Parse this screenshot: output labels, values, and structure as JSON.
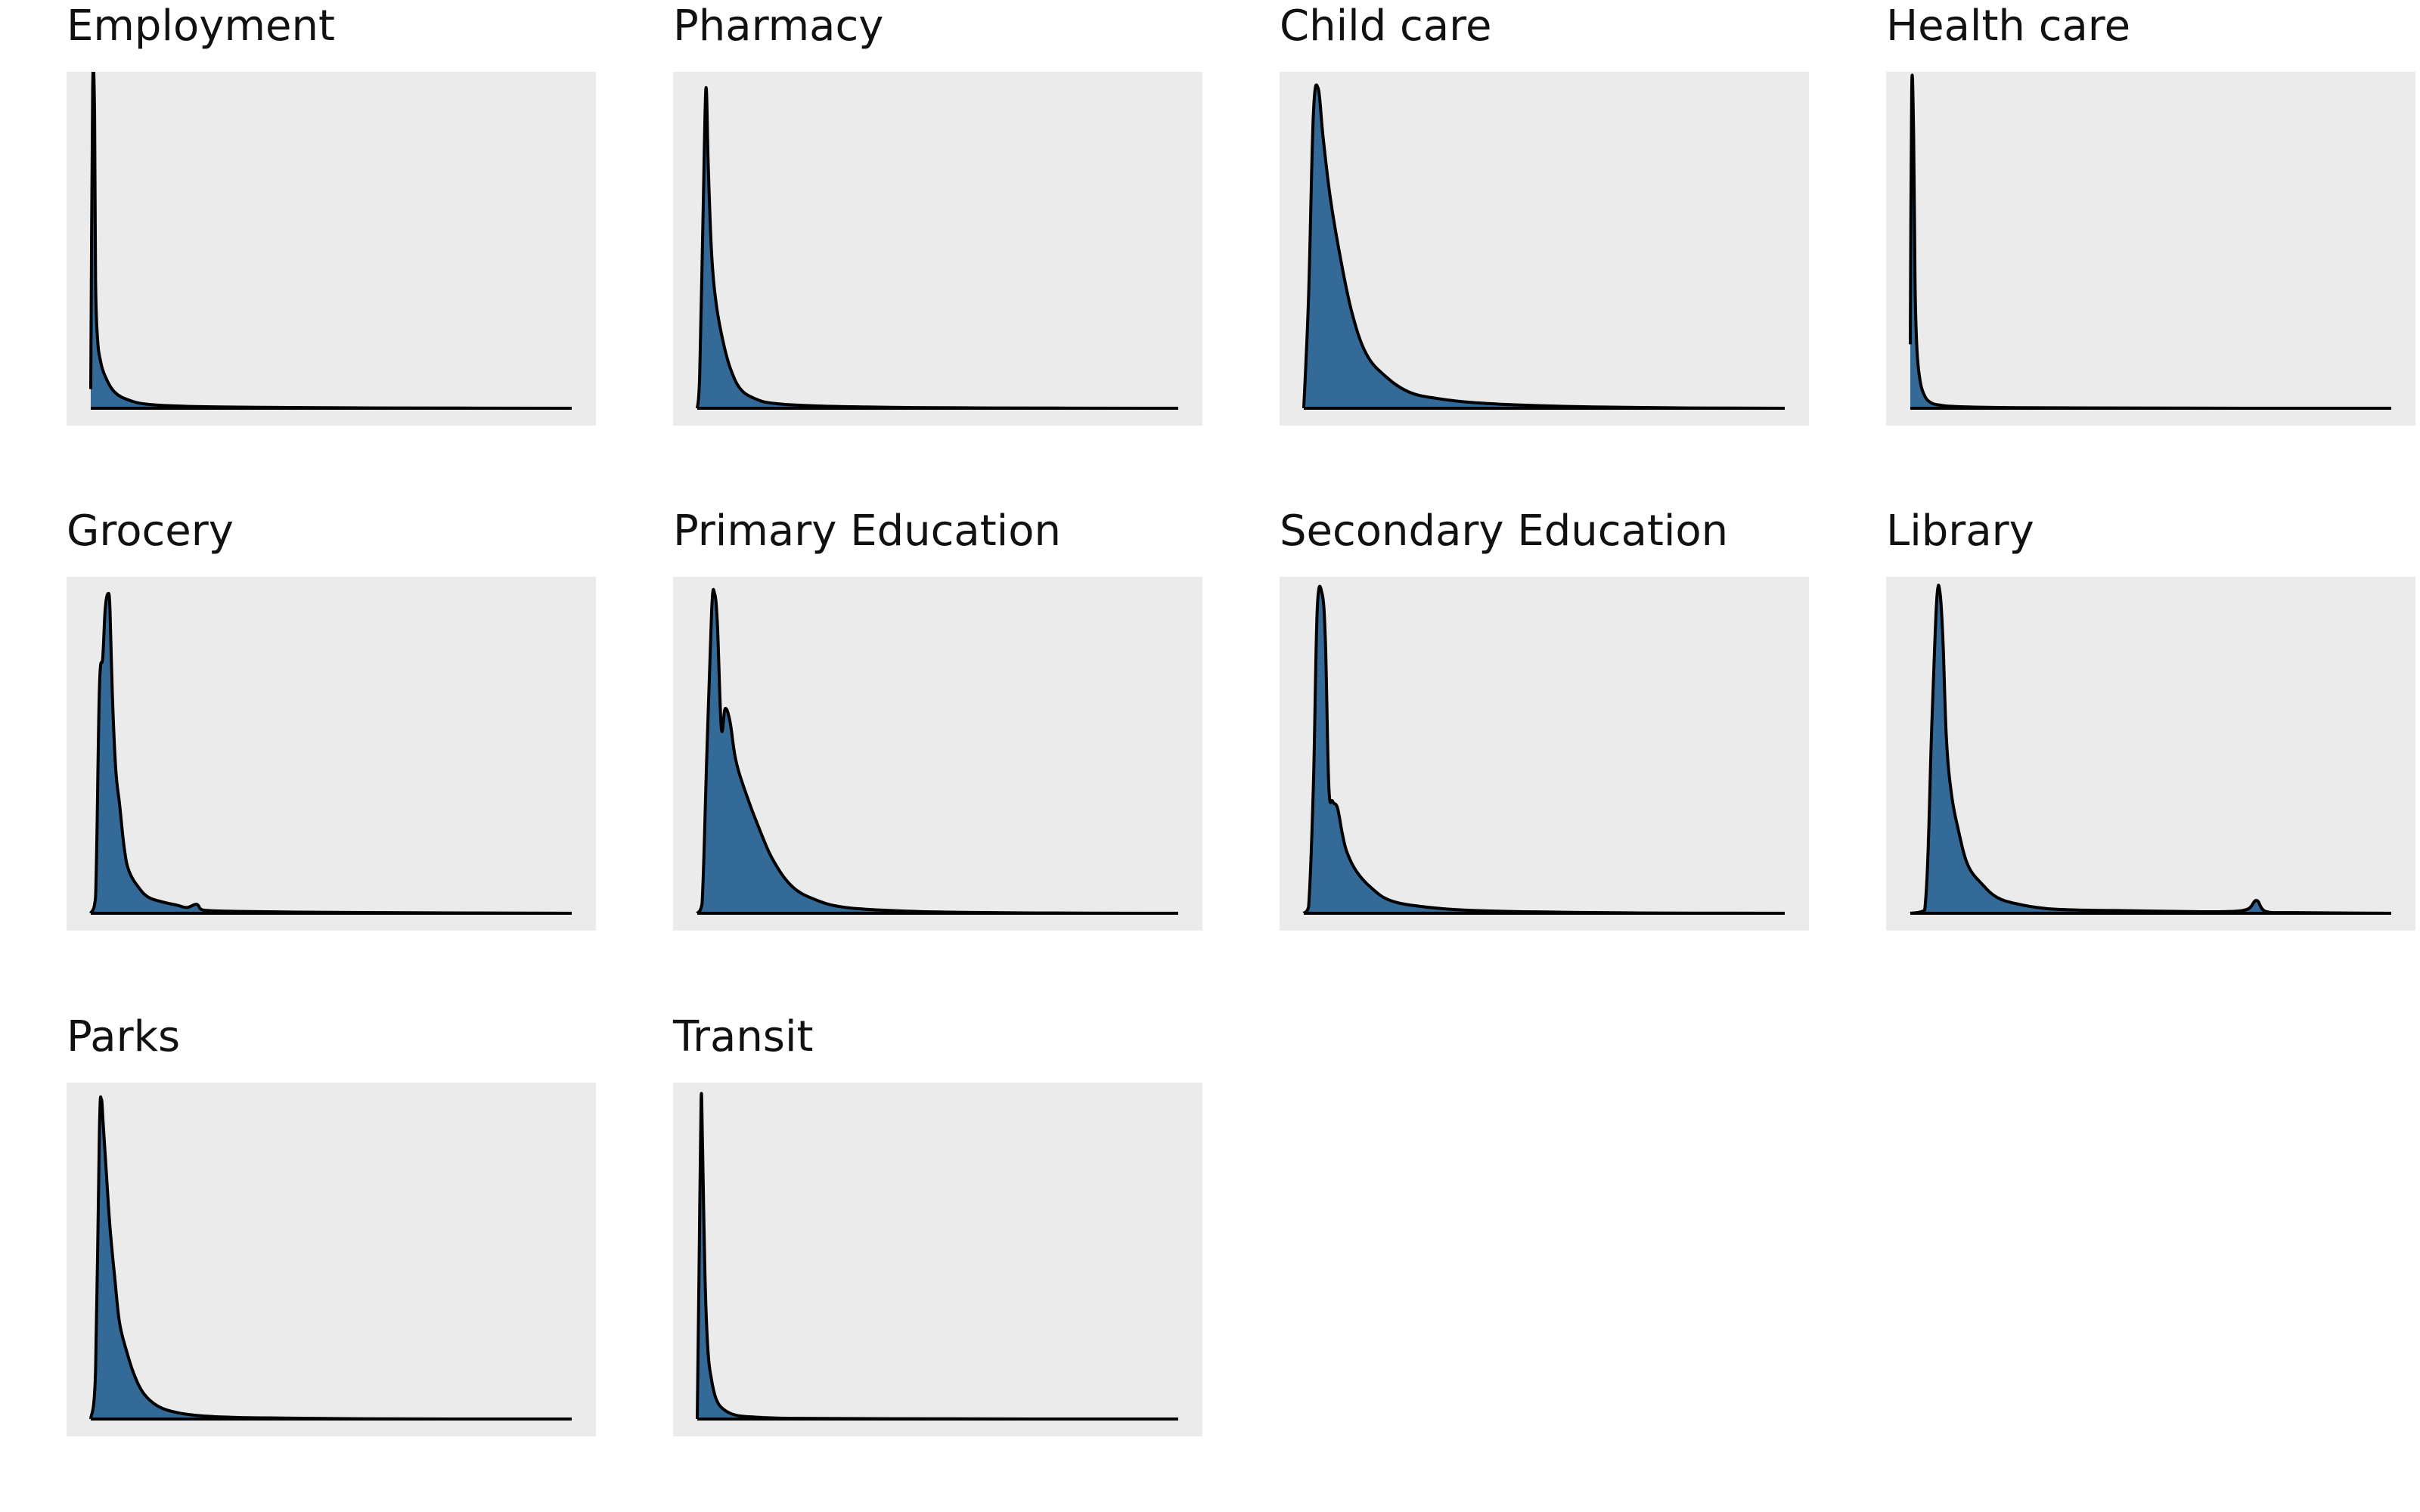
{
  "colors": {
    "panel_background": "#ebebeb",
    "fill": "#336a98",
    "line": "#000000"
  },
  "chart_data": [
    {
      "type": "area",
      "title": "Employment",
      "xlim": [
        0,
        1
      ],
      "grid": false,
      "series": [
        {
          "x": [
            0,
            0.004,
            0.008,
            0.01,
            0.014,
            0.02,
            0.03,
            0.05,
            0.08,
            0.12,
            0.2,
            0.35,
            0.6,
            1.0
          ],
          "y": [
            0.06,
            1.0,
            0.92,
            0.4,
            0.22,
            0.15,
            0.1,
            0.05,
            0.025,
            0.012,
            0.006,
            0.003,
            0.001,
            0.0
          ]
        }
      ]
    },
    {
      "type": "area",
      "title": "Pharmacy",
      "xlim": [
        0,
        1
      ],
      "grid": false,
      "series": [
        {
          "x": [
            0,
            0.005,
            0.012,
            0.018,
            0.023,
            0.03,
            0.04,
            0.055,
            0.07,
            0.09,
            0.12,
            0.16,
            0.25,
            0.4,
            0.6,
            1.0
          ],
          "y": [
            0.0,
            0.1,
            0.6,
            1.0,
            0.75,
            0.48,
            0.32,
            0.2,
            0.12,
            0.06,
            0.03,
            0.015,
            0.007,
            0.003,
            0.001,
            0.0
          ]
        }
      ]
    },
    {
      "type": "area",
      "title": "Child care",
      "xlim": [
        0,
        1
      ],
      "grid": false,
      "series": [
        {
          "x": [
            0,
            0.01,
            0.02,
            0.03,
            0.04,
            0.055,
            0.075,
            0.1,
            0.13,
            0.17,
            0.22,
            0.28,
            0.35,
            0.45,
            0.6,
            0.8,
            1.0
          ],
          "y": [
            0.0,
            0.35,
            0.92,
            1.0,
            0.85,
            0.66,
            0.48,
            0.3,
            0.17,
            0.1,
            0.05,
            0.03,
            0.018,
            0.01,
            0.004,
            0.001,
            0.0
          ]
        }
      ]
    },
    {
      "type": "area",
      "title": "Health care",
      "xlim": [
        0,
        1
      ],
      "grid": false,
      "series": [
        {
          "x": [
            0,
            0.003,
            0.007,
            0.01,
            0.014,
            0.02,
            0.028,
            0.04,
            0.06,
            0.1,
            0.2,
            0.4,
            0.7,
            1.0
          ],
          "y": [
            0.2,
            1.0,
            0.85,
            0.38,
            0.18,
            0.09,
            0.045,
            0.02,
            0.01,
            0.005,
            0.002,
            0.001,
            0.0,
            0.0
          ]
        }
      ]
    },
    {
      "type": "area",
      "title": "Grocery",
      "xlim": [
        0,
        1
      ],
      "grid": false,
      "series": [
        {
          "x": [
            0,
            0.01,
            0.018,
            0.025,
            0.03,
            0.036,
            0.04,
            0.045,
            0.052,
            0.06,
            0.07,
            0.08,
            0.1,
            0.12,
            0.15,
            0.18,
            0.2,
            0.22,
            0.23,
            0.25,
            0.3,
            0.4,
            0.6,
            1.0
          ],
          "y": [
            0.0,
            0.05,
            0.7,
            0.8,
            0.95,
            1.0,
            0.95,
            0.68,
            0.45,
            0.34,
            0.2,
            0.13,
            0.08,
            0.05,
            0.035,
            0.025,
            0.018,
            0.028,
            0.012,
            0.008,
            0.006,
            0.004,
            0.002,
            0.0
          ]
        }
      ]
    },
    {
      "type": "area",
      "title": "Primary Education",
      "xlim": [
        0,
        1
      ],
      "grid": false,
      "series": [
        {
          "x": [
            0,
            0.01,
            0.02,
            0.03,
            0.036,
            0.042,
            0.05,
            0.058,
            0.068,
            0.08,
            0.1,
            0.13,
            0.16,
            0.2,
            0.25,
            0.3,
            0.38,
            0.5,
            0.7,
            1.0
          ],
          "y": [
            0.0,
            0.03,
            0.5,
            0.95,
            1.0,
            0.9,
            0.58,
            0.64,
            0.6,
            0.48,
            0.38,
            0.26,
            0.16,
            0.08,
            0.04,
            0.02,
            0.01,
            0.004,
            0.001,
            0.0
          ]
        }
      ]
    },
    {
      "type": "area",
      "title": "Secondary Education",
      "xlim": [
        0,
        1
      ],
      "grid": false,
      "series": [
        {
          "x": [
            0,
            0.01,
            0.02,
            0.028,
            0.038,
            0.045,
            0.052,
            0.06,
            0.07,
            0.08,
            0.09,
            0.11,
            0.14,
            0.18,
            0.25,
            0.35,
            0.5,
            0.7,
            1.0
          ],
          "y": [
            0.0,
            0.02,
            0.4,
            0.95,
            1.0,
            0.85,
            0.4,
            0.35,
            0.33,
            0.25,
            0.19,
            0.13,
            0.08,
            0.04,
            0.02,
            0.009,
            0.004,
            0.001,
            0.0
          ]
        }
      ]
    },
    {
      "type": "area",
      "title": "Library",
      "xlim": [
        0,
        1
      ],
      "grid": false,
      "series": [
        {
          "x": [
            0,
            0.03,
            0.045,
            0.055,
            0.062,
            0.068,
            0.075,
            0.085,
            0.1,
            0.12,
            0.15,
            0.18,
            0.22,
            0.28,
            0.35,
            0.45,
            0.55,
            0.65,
            0.7,
            0.72,
            0.74,
            0.8,
            1.0
          ],
          "y": [
            0.0,
            0.01,
            0.6,
            0.98,
            1.0,
            0.85,
            0.55,
            0.38,
            0.26,
            0.15,
            0.09,
            0.05,
            0.03,
            0.015,
            0.01,
            0.008,
            0.006,
            0.005,
            0.012,
            0.04,
            0.005,
            0.002,
            0.0
          ]
        }
      ]
    },
    {
      "type": "area",
      "title": "Parks",
      "xlim": [
        0,
        1
      ],
      "grid": false,
      "series": [
        {
          "x": [
            0,
            0.01,
            0.018,
            0.022,
            0.026,
            0.032,
            0.04,
            0.05,
            0.06,
            0.075,
            0.09,
            0.11,
            0.14,
            0.18,
            0.23,
            0.3,
            0.4,
            0.55,
            0.75,
            1.0
          ],
          "y": [
            0.0,
            0.15,
            0.9,
            1.0,
            0.92,
            0.78,
            0.6,
            0.44,
            0.3,
            0.21,
            0.14,
            0.08,
            0.04,
            0.02,
            0.01,
            0.005,
            0.003,
            0.001,
            0.0,
            0.0
          ]
        }
      ]
    },
    {
      "type": "area",
      "title": "Transit",
      "xlim": [
        0,
        1
      ],
      "grid": false,
      "series": [
        {
          "x": [
            0,
            0.004,
            0.008,
            0.011,
            0.016,
            0.022,
            0.03,
            0.04,
            0.055,
            0.08,
            0.12,
            0.2,
            0.4,
            0.7,
            1.0
          ],
          "y": [
            0.0,
            0.5,
            1.0,
            0.85,
            0.45,
            0.22,
            0.12,
            0.06,
            0.03,
            0.012,
            0.006,
            0.002,
            0.001,
            0.0,
            0.0
          ]
        }
      ]
    }
  ]
}
